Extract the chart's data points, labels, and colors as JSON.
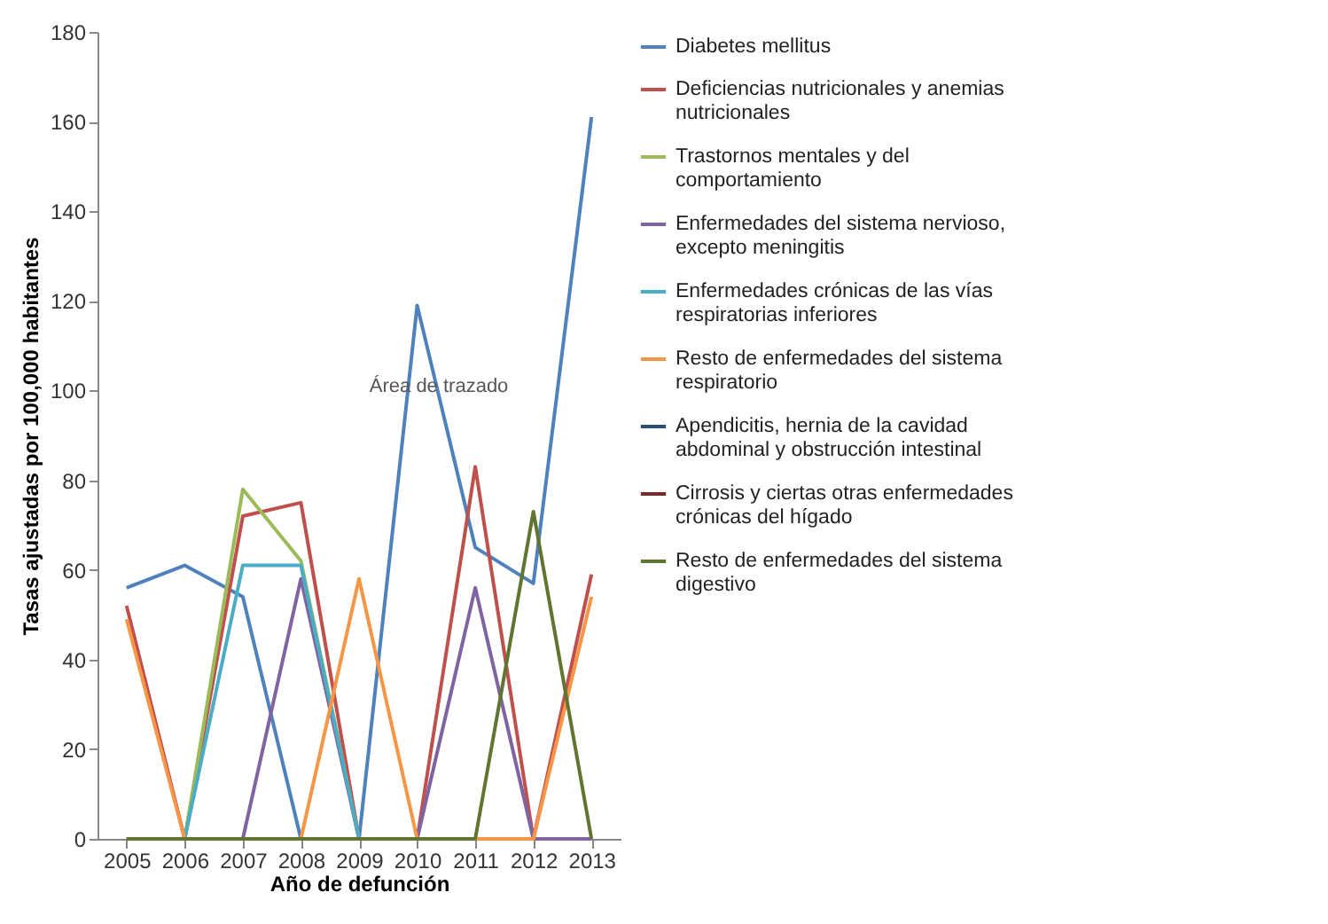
{
  "chart_data": {
    "type": "line",
    "xlabel": "Año de defunción",
    "ylabel": "Tasas ajustadas por 100,000 habitantes",
    "categories": [
      "2005",
      "2006",
      "2007",
      "2008",
      "2009",
      "2010",
      "2011",
      "2012",
      "2013"
    ],
    "ylim": [
      0,
      180
    ],
    "yticks": [
      0,
      20,
      40,
      60,
      80,
      100,
      120,
      140,
      160,
      180
    ],
    "grid": false,
    "legend": "right",
    "marker": "none",
    "annotations": [
      "Área de trazado"
    ],
    "series": [
      {
        "name": "Diabetes mellitus",
        "color": "#4f81bd",
        "values": [
          56,
          61,
          54,
          0,
          0,
          119,
          65,
          57,
          161
        ]
      },
      {
        "name": "Deficiencias nutricionales y anemias nutricionales",
        "color": "#c0504d",
        "values": [
          52,
          0,
          72,
          75,
          0,
          0,
          83,
          0,
          59
        ]
      },
      {
        "name": "Trastornos mentales y del comportamiento",
        "color": "#9bbb59",
        "values": [
          0,
          0,
          78,
          62,
          0,
          0,
          0,
          0,
          0
        ]
      },
      {
        "name": "Enfermedades del sistema nervioso, excepto meningitis",
        "color": "#8064a2",
        "values": [
          0,
          0,
          0,
          58,
          0,
          0,
          56,
          0,
          0
        ]
      },
      {
        "name": "Enfermedades crónicas de las vías respiratorias inferiores",
        "color": "#4bacc6",
        "values": [
          null,
          0,
          61,
          61,
          0,
          null,
          null,
          null,
          null
        ]
      },
      {
        "name": "Resto de enfermedades del sistema respiratorio",
        "color": "#f79646",
        "values": [
          49,
          0,
          0,
          0,
          58,
          0,
          0,
          0,
          54
        ]
      },
      {
        "name": "Apendicitis, hernia de la cavidad abdominal y obstrucción intestinal",
        "color": "#2c4d75",
        "values": [
          null,
          null,
          null,
          null,
          null,
          null,
          null,
          null,
          null
        ]
      },
      {
        "name": "Cirrosis y ciertas otras enfermedades crónicas del hígado",
        "color": "#772c2a",
        "values": [
          null,
          null,
          null,
          null,
          null,
          null,
          null,
          null,
          null
        ]
      },
      {
        "name": "Resto de enfermedades del sistema digestivo",
        "color": "#5f7530",
        "values": [
          0,
          0,
          0,
          0,
          0,
          0,
          0,
          73,
          0
        ]
      }
    ]
  }
}
